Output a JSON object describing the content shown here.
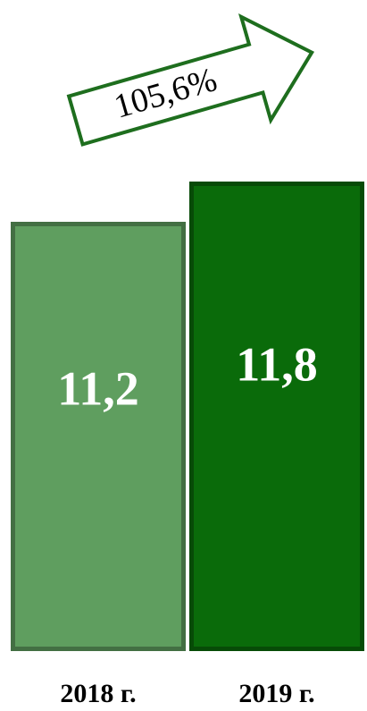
{
  "chart_data": {
    "type": "bar",
    "annotation": "105,6%",
    "categories": [
      "2018 г.",
      "2019 г."
    ],
    "values": [
      11.2,
      11.8
    ],
    "value_labels": [
      "11,2",
      "11,8"
    ],
    "colors": [
      "#5f9e5f",
      "#0a6b0a"
    ],
    "ylim": [
      4.8,
      12.8
    ]
  }
}
